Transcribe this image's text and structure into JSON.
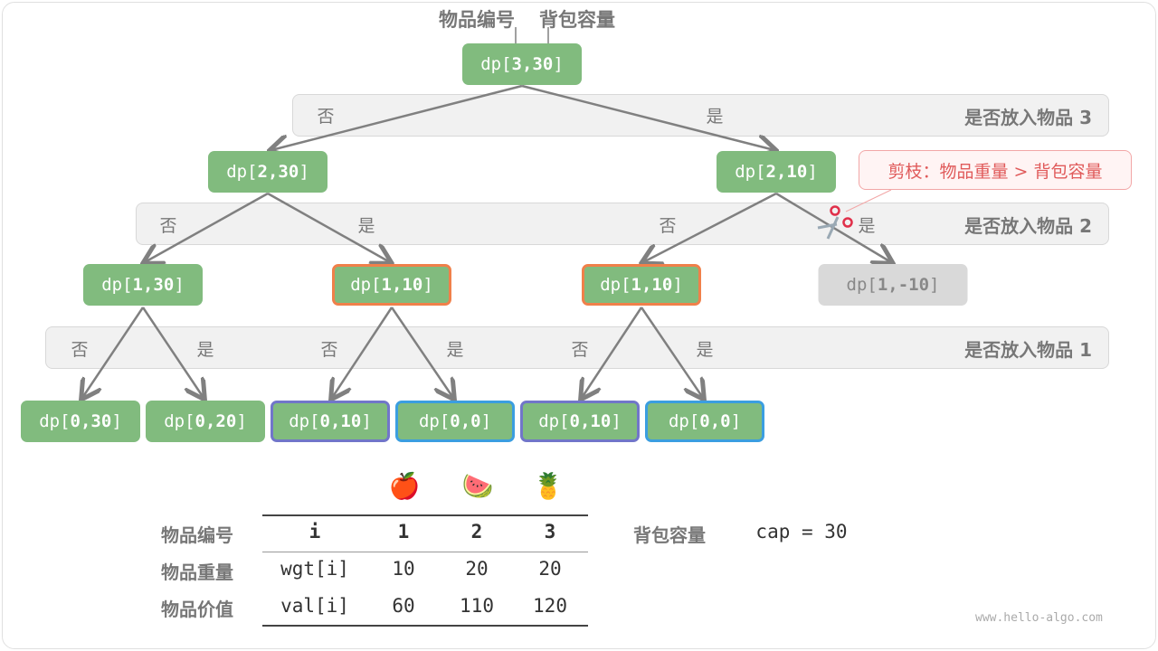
{
  "header": {
    "item_label": "物品编号",
    "capacity_label": "背包容量"
  },
  "bands": [
    {
      "title": "是否放入物品 3",
      "choices": [
        "否",
        "是"
      ]
    },
    {
      "title": "是否放入物品 2",
      "choices": [
        "否",
        "是",
        "否",
        "是"
      ]
    },
    {
      "title": "是否放入物品 1",
      "choices": [
        "否",
        "是",
        "否",
        "是",
        "否",
        "是"
      ]
    }
  ],
  "nodes": {
    "root": {
      "prefix": "dp[",
      "args": "3,30",
      "suffix": "]"
    },
    "l1": [
      {
        "args": "2,30"
      },
      {
        "args": "2,10"
      }
    ],
    "l2": [
      {
        "args": "1,30"
      },
      {
        "args": "1,10",
        "highlight": "orange"
      },
      {
        "args": "1,10",
        "highlight": "orange"
      },
      {
        "args": "1,-10",
        "state": "pruned"
      }
    ],
    "l3": [
      {
        "args": "0,30"
      },
      {
        "args": "0,20"
      },
      {
        "args": "0,10",
        "highlight": "purple"
      },
      {
        "args": "0,0",
        "highlight": "blue"
      },
      {
        "args": "0,10",
        "highlight": "purple"
      },
      {
        "args": "0,0",
        "highlight": "blue"
      }
    ]
  },
  "callout": {
    "text": "剪枝：物品重量 > 背包容量",
    "icon": "scissors-icon"
  },
  "table": {
    "row_labels": [
      "物品编号",
      "物品重量",
      "物品价值"
    ],
    "headers": [
      "i",
      "1",
      "2",
      "3"
    ],
    "icons": [
      "apple",
      "watermelon",
      "pineapple"
    ],
    "rows": [
      [
        "wgt[i]",
        "10",
        "20",
        "20"
      ],
      [
        "val[i]",
        "60",
        "110",
        "120"
      ]
    ]
  },
  "capacity": {
    "label": "背包容量",
    "value": "cap = 30"
  },
  "watermark": "www.hello-algo.com",
  "colors": {
    "node": "#81bb7e",
    "pruned": "#d9d9d9",
    "orange": "#f0804a",
    "purple": "#7176c9",
    "blue": "#3b9ee0",
    "callout": "#e05a5a"
  }
}
